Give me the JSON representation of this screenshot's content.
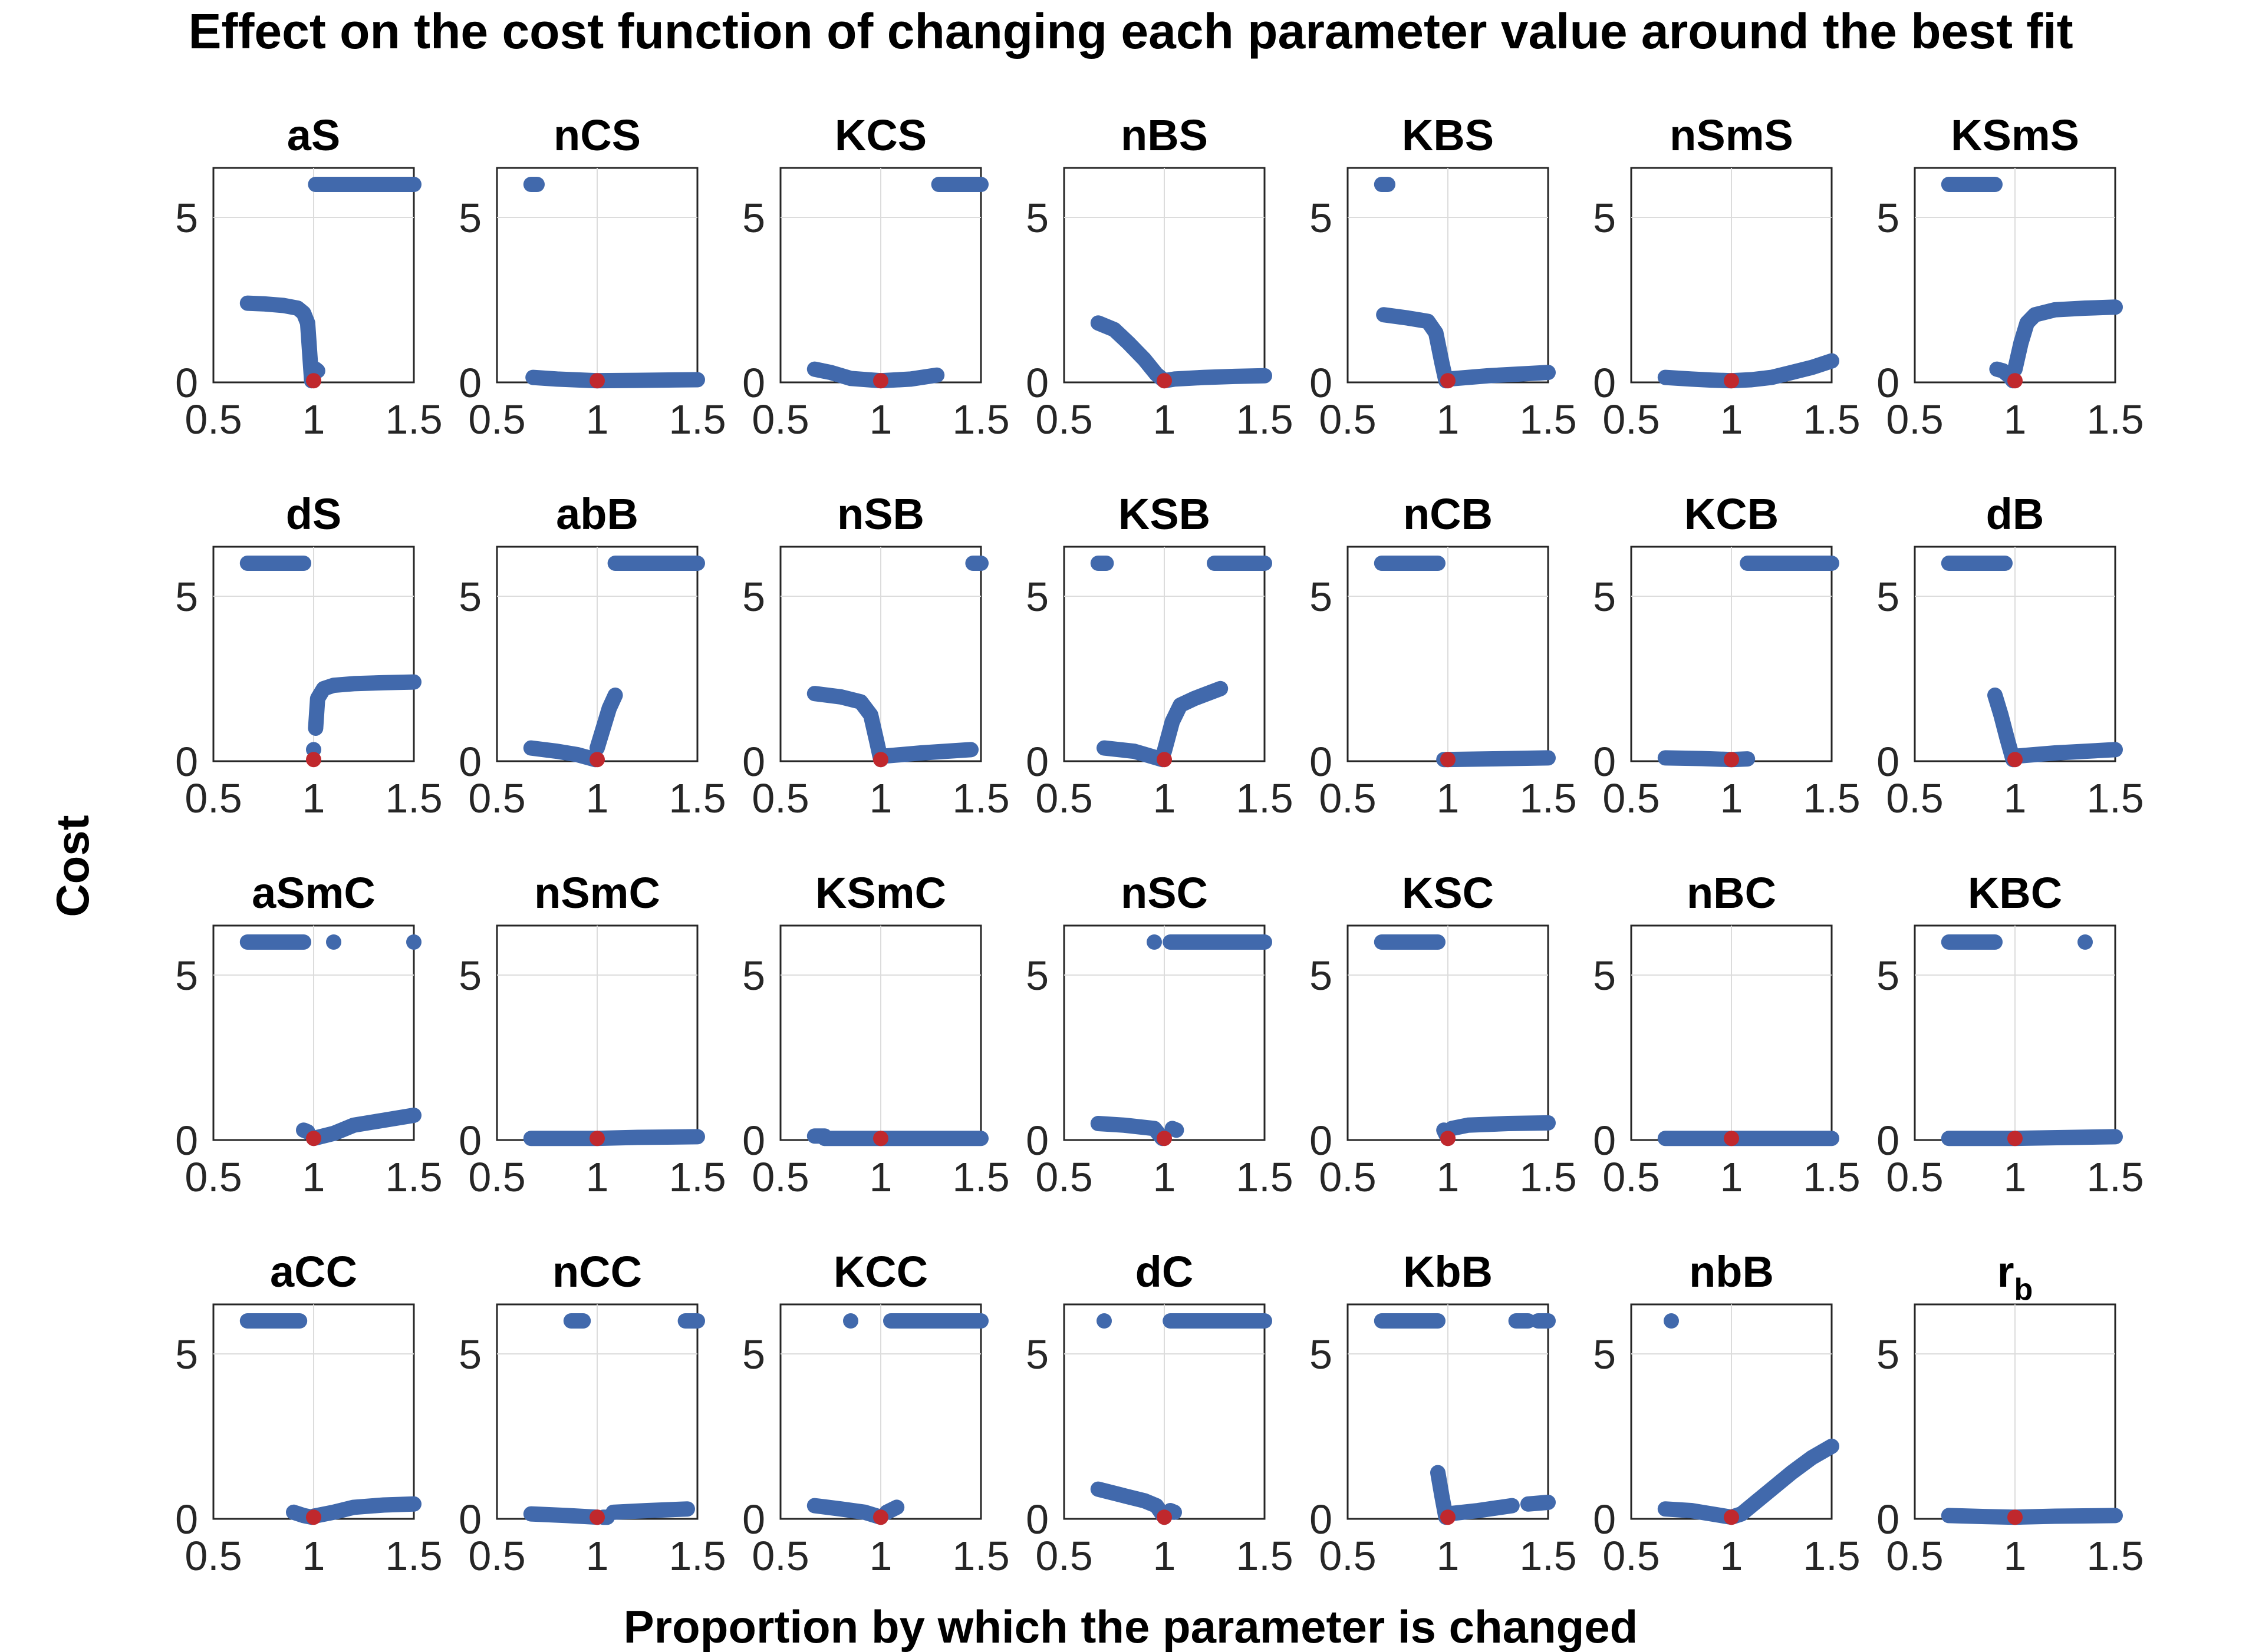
{
  "figure": {
    "title": "Effect on the cost function of changing each parameter value around the best fit",
    "xlabel": "Proportion by which the parameter is changed",
    "ylabel": "Cost"
  },
  "colors": {
    "series": "#4169ac",
    "best_fit": "#c0282d",
    "axes": "#262626",
    "grid": "#dcdcdc"
  },
  "chart_data": {
    "type": "scatter",
    "layout": "4x7 grid of small multiples",
    "xlim": [
      0.5,
      1.5
    ],
    "ylim": [
      0,
      6.5
    ],
    "xticks": [
      "0.5",
      "1",
      "1.5"
    ],
    "yticks": [
      "0",
      "5"
    ],
    "grid": true,
    "best_fit": {
      "x": 1,
      "y": 0.05
    },
    "panels": [
      {
        "title": "aS",
        "segments": [
          {
            "x": [
              0.67,
              0.75,
              0.85,
              0.92,
              0.95,
              0.97,
              0.99
            ],
            "y": [
              2.4,
              2.38,
              2.33,
              2.25,
              2.1,
              1.8,
              0.05
            ]
          },
          {
            "x": [
              1.01,
              1.02
            ],
            "y": [
              0.4,
              0.35
            ]
          },
          {
            "x": [
              1.01,
              1.5
            ],
            "y": [
              6,
              6
            ]
          }
        ]
      },
      {
        "title": "nCS",
        "segments": [
          {
            "x": [
              0.67,
              0.7
            ],
            "y": [
              6,
              6
            ]
          },
          {
            "x": [
              0.68,
              0.8,
              1.0,
              1.2,
              1.5
            ],
            "y": [
              0.15,
              0.1,
              0.05,
              0.06,
              0.08
            ]
          }
        ]
      },
      {
        "title": "KCS",
        "segments": [
          {
            "x": [
              0.67,
              0.75,
              0.85,
              1.0,
              1.15,
              1.28
            ],
            "y": [
              0.4,
              0.3,
              0.12,
              0.05,
              0.1,
              0.22
            ]
          },
          {
            "x": [
              1.29,
              1.5
            ],
            "y": [
              6,
              6
            ]
          }
        ]
      },
      {
        "title": "nBS",
        "segments": [
          {
            "x": [
              0.67,
              0.75,
              0.82,
              0.9,
              0.96,
              1.0,
              1.05,
              1.2,
              1.35,
              1.5
            ],
            "y": [
              1.8,
              1.6,
              1.2,
              0.7,
              0.25,
              0.05,
              0.1,
              0.15,
              0.18,
              0.2
            ]
          }
        ]
      },
      {
        "title": "KBS",
        "segments": [
          {
            "x": [
              0.67,
              0.7
            ],
            "y": [
              6,
              6
            ]
          },
          {
            "x": [
              0.68,
              0.8,
              0.9,
              0.94,
              0.97,
              0.99
            ],
            "y": [
              2.05,
              1.95,
              1.85,
              1.5,
              0.6,
              0.05
            ]
          },
          {
            "x": [
              1.0,
              1.2,
              1.5
            ],
            "y": [
              0.1,
              0.2,
              0.3
            ]
          }
        ]
      },
      {
        "title": "nSmS",
        "segments": [
          {
            "x": [
              0.67,
              0.8,
              0.9,
              1.0,
              1.1,
              1.2,
              1.3,
              1.4,
              1.5
            ],
            "y": [
              0.15,
              0.1,
              0.07,
              0.05,
              0.08,
              0.15,
              0.3,
              0.45,
              0.65
            ]
          }
        ]
      },
      {
        "title": "KSmS",
        "segments": [
          {
            "x": [
              0.67,
              0.9
            ],
            "y": [
              6,
              6
            ]
          },
          {
            "x": [
              0.91,
              0.94,
              0.97,
              0.99
            ],
            "y": [
              0.4,
              0.35,
              0.2,
              0.05
            ]
          },
          {
            "x": [
              1.0,
              1.03,
              1.06,
              1.1,
              1.2,
              1.35,
              1.5
            ],
            "y": [
              0.4,
              1.2,
              1.8,
              2.05,
              2.2,
              2.25,
              2.28
            ]
          }
        ]
      },
      {
        "title": "dS",
        "segments": [
          {
            "x": [
              0.67,
              0.95
            ],
            "y": [
              6,
              6
            ]
          },
          {
            "x": [
              1.0,
              1.0
            ],
            "y": [
              0.35,
              0.35
            ]
          },
          {
            "x": [
              1.01,
              1.02,
              1.05,
              1.1,
              1.2,
              1.35,
              1.5
            ],
            "y": [
              1.0,
              1.9,
              2.2,
              2.3,
              2.35,
              2.38,
              2.4
            ]
          }
        ]
      },
      {
        "title": "abB",
        "segments": [
          {
            "x": [
              0.67,
              0.8,
              0.9,
              0.99
            ],
            "y": [
              0.4,
              0.3,
              0.2,
              0.05
            ]
          },
          {
            "x": [
              1.0,
              1.03,
              1.06,
              1.09
            ],
            "y": [
              0.4,
              1.0,
              1.6,
              2.0
            ]
          },
          {
            "x": [
              1.09,
              1.5
            ],
            "y": [
              6,
              6
            ]
          }
        ]
      },
      {
        "title": "nSB",
        "segments": [
          {
            "x": [
              0.67,
              0.8,
              0.9,
              0.95,
              0.98,
              1.0
            ],
            "y": [
              2.05,
              1.95,
              1.8,
              1.4,
              0.6,
              0.05
            ]
          },
          {
            "x": [
              1.01,
              1.2,
              1.45
            ],
            "y": [
              0.15,
              0.25,
              0.35
            ]
          },
          {
            "x": [
              1.46,
              1.5
            ],
            "y": [
              6,
              6
            ]
          }
        ]
      },
      {
        "title": "KSB",
        "segments": [
          {
            "x": [
              0.67,
              0.71
            ],
            "y": [
              6,
              6
            ]
          },
          {
            "x": [
              0.7,
              0.85,
              0.99
            ],
            "y": [
              0.4,
              0.3,
              0.05
            ]
          },
          {
            "x": [
              1.0,
              1.04,
              1.08,
              1.15,
              1.28
            ],
            "y": [
              0.3,
              1.2,
              1.7,
              1.9,
              2.2
            ]
          },
          {
            "x": [
              1.25,
              1.5
            ],
            "y": [
              6,
              6
            ]
          }
        ]
      },
      {
        "title": "nCB",
        "segments": [
          {
            "x": [
              0.67,
              0.95
            ],
            "y": [
              6,
              6
            ]
          },
          {
            "x": [
              0.98,
              1.2,
              1.5
            ],
            "y": [
              0.05,
              0.07,
              0.1
            ]
          }
        ]
      },
      {
        "title": "KCB",
        "segments": [
          {
            "x": [
              0.67,
              0.85,
              1.0,
              1.08
            ],
            "y": [
              0.1,
              0.08,
              0.05,
              0.07
            ]
          },
          {
            "x": [
              1.08,
              1.5
            ],
            "y": [
              6,
              6
            ]
          }
        ]
      },
      {
        "title": "dB",
        "segments": [
          {
            "x": [
              0.67,
              0.95
            ],
            "y": [
              6,
              6
            ]
          },
          {
            "x": [
              0.9,
              0.93,
              0.96,
              0.99
            ],
            "y": [
              2.0,
              1.4,
              0.7,
              0.05
            ]
          },
          {
            "x": [
              1.0,
              1.2,
              1.5
            ],
            "y": [
              0.15,
              0.25,
              0.35
            ]
          }
        ]
      },
      {
        "title": "aSmC",
        "segments": [
          {
            "x": [
              0.67,
              0.95
            ],
            "y": [
              6,
              6
            ]
          },
          {
            "x": [
              1.1,
              1.1
            ],
            "y": [
              6,
              6
            ]
          },
          {
            "x": [
              1.5,
              1.5
            ],
            "y": [
              6,
              6
            ]
          },
          {
            "x": [
              0.95,
              0.97
            ],
            "y": [
              0.3,
              0.25
            ]
          },
          {
            "x": [
              1.0,
              1.1,
              1.2,
              1.35,
              1.5
            ],
            "y": [
              0.05,
              0.2,
              0.45,
              0.6,
              0.75
            ]
          }
        ]
      },
      {
        "title": "nSmC",
        "segments": [
          {
            "x": [
              0.67,
              0.85,
              1.0,
              1.2,
              1.5
            ],
            "y": [
              0.05,
              0.05,
              0.05,
              0.08,
              0.1
            ]
          }
        ]
      },
      {
        "title": "KSmC",
        "segments": [
          {
            "x": [
              0.67,
              0.72
            ],
            "y": [
              0.12,
              0.12
            ]
          },
          {
            "x": [
              0.72,
              1.0,
              1.5
            ],
            "y": [
              0.05,
              0.05,
              0.05
            ]
          }
        ]
      },
      {
        "title": "nSC",
        "segments": [
          {
            "x": [
              0.95,
              0.95
            ],
            "y": [
              6,
              6
            ]
          },
          {
            "x": [
              1.03,
              1.5
            ],
            "y": [
              6,
              6
            ]
          },
          {
            "x": [
              0.67,
              0.8,
              0.95,
              0.99
            ],
            "y": [
              0.5,
              0.45,
              0.35,
              0.05
            ]
          },
          {
            "x": [
              1.04,
              1.06
            ],
            "y": [
              0.35,
              0.3
            ]
          }
        ]
      },
      {
        "title": "KSC",
        "segments": [
          {
            "x": [
              0.67,
              0.95
            ],
            "y": [
              6,
              6
            ]
          },
          {
            "x": [
              0.98,
              1.0
            ],
            "y": [
              0.3,
              0.05
            ]
          },
          {
            "x": [
              1.02,
              1.1,
              1.3,
              1.5
            ],
            "y": [
              0.35,
              0.45,
              0.5,
              0.52
            ]
          }
        ]
      },
      {
        "title": "nBC",
        "segments": [
          {
            "x": [
              0.67,
              1.0,
              1.5
            ],
            "y": [
              0.05,
              0.05,
              0.05
            ]
          }
        ]
      },
      {
        "title": "KBC",
        "segments": [
          {
            "x": [
              0.67,
              0.9
            ],
            "y": [
              6,
              6
            ]
          },
          {
            "x": [
              1.35,
              1.35
            ],
            "y": [
              6,
              6
            ]
          },
          {
            "x": [
              0.67,
              1.0,
              1.5
            ],
            "y": [
              0.05,
              0.05,
              0.1
            ]
          }
        ]
      },
      {
        "title": "aCC",
        "segments": [
          {
            "x": [
              0.67,
              0.93
            ],
            "y": [
              6,
              6
            ]
          },
          {
            "x": [
              0.9,
              0.95,
              0.99
            ],
            "y": [
              0.2,
              0.1,
              0.05
            ]
          },
          {
            "x": [
              1.0,
              1.1,
              1.2,
              1.35,
              1.5
            ],
            "y": [
              0.08,
              0.2,
              0.35,
              0.42,
              0.45
            ]
          }
        ]
      },
      {
        "title": "nCC",
        "segments": [
          {
            "x": [
              0.87,
              0.93
            ],
            "y": [
              6,
              6
            ]
          },
          {
            "x": [
              1.44,
              1.5
            ],
            "y": [
              6,
              6
            ]
          },
          {
            "x": [
              0.67,
              0.85,
              1.0
            ],
            "y": [
              0.15,
              0.1,
              0.05
            ]
          },
          {
            "x": [
              1.03,
              1.05
            ],
            "y": [
              0.05,
              0.05
            ]
          },
          {
            "x": [
              1.08,
              1.25,
              1.45
            ],
            "y": [
              0.2,
              0.25,
              0.3
            ]
          }
        ]
      },
      {
        "title": "KCC",
        "segments": [
          {
            "x": [
              0.85,
              0.85
            ],
            "y": [
              6,
              6
            ]
          },
          {
            "x": [
              1.05,
              1.5
            ],
            "y": [
              6,
              6
            ]
          },
          {
            "x": [
              0.67,
              0.8,
              0.92,
              1.0
            ],
            "y": [
              0.4,
              0.3,
              0.2,
              0.05
            ]
          },
          {
            "x": [
              1.03,
              1.08
            ],
            "y": [
              0.2,
              0.35
            ]
          }
        ]
      },
      {
        "title": "dC",
        "segments": [
          {
            "x": [
              0.7,
              0.7
            ],
            "y": [
              6,
              6
            ]
          },
          {
            "x": [
              1.03,
              1.5
            ],
            "y": [
              6,
              6
            ]
          },
          {
            "x": [
              0.67,
              0.8,
              0.9,
              0.96,
              1.0
            ],
            "y": [
              0.9,
              0.7,
              0.55,
              0.4,
              0.05
            ]
          },
          {
            "x": [
              1.03,
              1.05
            ],
            "y": [
              0.25,
              0.2
            ]
          }
        ]
      },
      {
        "title": "KbB",
        "segments": [
          {
            "x": [
              0.67,
              0.95
            ],
            "y": [
              6,
              6
            ]
          },
          {
            "x": [
              1.34,
              1.4
            ],
            "y": [
              6,
              6
            ]
          },
          {
            "x": [
              1.45,
              1.5
            ],
            "y": [
              6,
              6
            ]
          },
          {
            "x": [
              0.95,
              0.97,
              0.99
            ],
            "y": [
              1.4,
              0.7,
              0.05
            ]
          },
          {
            "x": [
              1.0,
              1.15,
              1.32
            ],
            "y": [
              0.15,
              0.25,
              0.4
            ]
          },
          {
            "x": [
              1.4,
              1.5
            ],
            "y": [
              0.45,
              0.5
            ]
          }
        ]
      },
      {
        "title": "nbB",
        "segments": [
          {
            "x": [
              0.7,
              0.7
            ],
            "y": [
              6,
              6
            ]
          },
          {
            "x": [
              0.67,
              0.8,
              0.9,
              1.0,
              1.05,
              1.1,
              1.2,
              1.3,
              1.4,
              1.5
            ],
            "y": [
              0.3,
              0.25,
              0.15,
              0.05,
              0.15,
              0.4,
              0.9,
              1.4,
              1.85,
              2.2
            ]
          }
        ]
      },
      {
        "title": "r",
        "title_sub": "b",
        "segments": [
          {
            "x": [
              0.67,
              0.85,
              1.0,
              1.2,
              1.5
            ],
            "y": [
              0.1,
              0.07,
              0.05,
              0.08,
              0.1
            ]
          }
        ]
      }
    ]
  }
}
